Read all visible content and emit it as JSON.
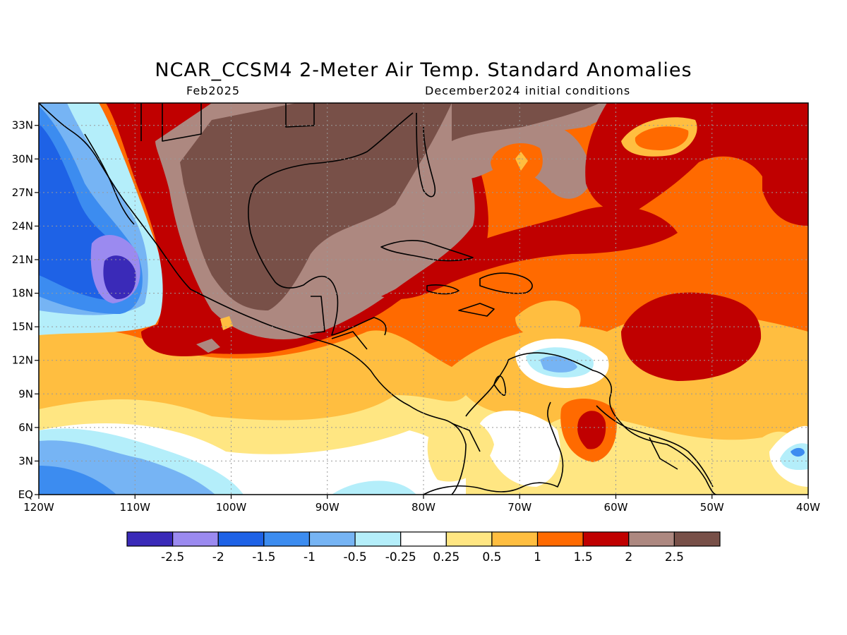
{
  "title": "NCAR_CCSM4 2-Meter Air Temp. Standard Anomalies",
  "valid_label": "Feb2025",
  "init_label": "December2024 initial conditions",
  "map": {
    "lon_range": [
      -120,
      -40
    ],
    "lat_range": [
      0,
      35
    ],
    "lon_ticks": [
      {
        "value": -120,
        "label": "120W"
      },
      {
        "value": -110,
        "label": "110W"
      },
      {
        "value": -100,
        "label": "100W"
      },
      {
        "value": -90,
        "label": "90W"
      },
      {
        "value": -80,
        "label": "80W"
      },
      {
        "value": -70,
        "label": "70W"
      },
      {
        "value": -60,
        "label": "60W"
      },
      {
        "value": -50,
        "label": "50W"
      },
      {
        "value": -40,
        "label": "40W"
      }
    ],
    "lat_ticks": [
      {
        "value": 0,
        "label": "EQ"
      },
      {
        "value": 3,
        "label": "3N"
      },
      {
        "value": 6,
        "label": "6N"
      },
      {
        "value": 9,
        "label": "9N"
      },
      {
        "value": 12,
        "label": "12N"
      },
      {
        "value": 15,
        "label": "15N"
      },
      {
        "value": 18,
        "label": "18N"
      },
      {
        "value": 21,
        "label": "21N"
      },
      {
        "value": 24,
        "label": "24N"
      },
      {
        "value": 27,
        "label": "27N"
      },
      {
        "value": 30,
        "label": "30N"
      },
      {
        "value": 33,
        "label": "33N"
      }
    ],
    "grid": true
  },
  "colorbar": {
    "colors": [
      "#3a2ab8",
      "#9b8af0",
      "#1e62e6",
      "#3c8cf0",
      "#76b4f4",
      "#b4eefa",
      "#ffffff",
      "#ffe682",
      "#ffbe40",
      "#ff6a00",
      "#c00000",
      "#ad8880",
      "#785048"
    ],
    "labels": [
      "-2.5",
      "-2",
      "-1.5",
      "-1",
      "-0.5",
      "-0.25",
      "0.25",
      "0.5",
      "1",
      "1.5",
      "2",
      "2.5"
    ]
  }
}
